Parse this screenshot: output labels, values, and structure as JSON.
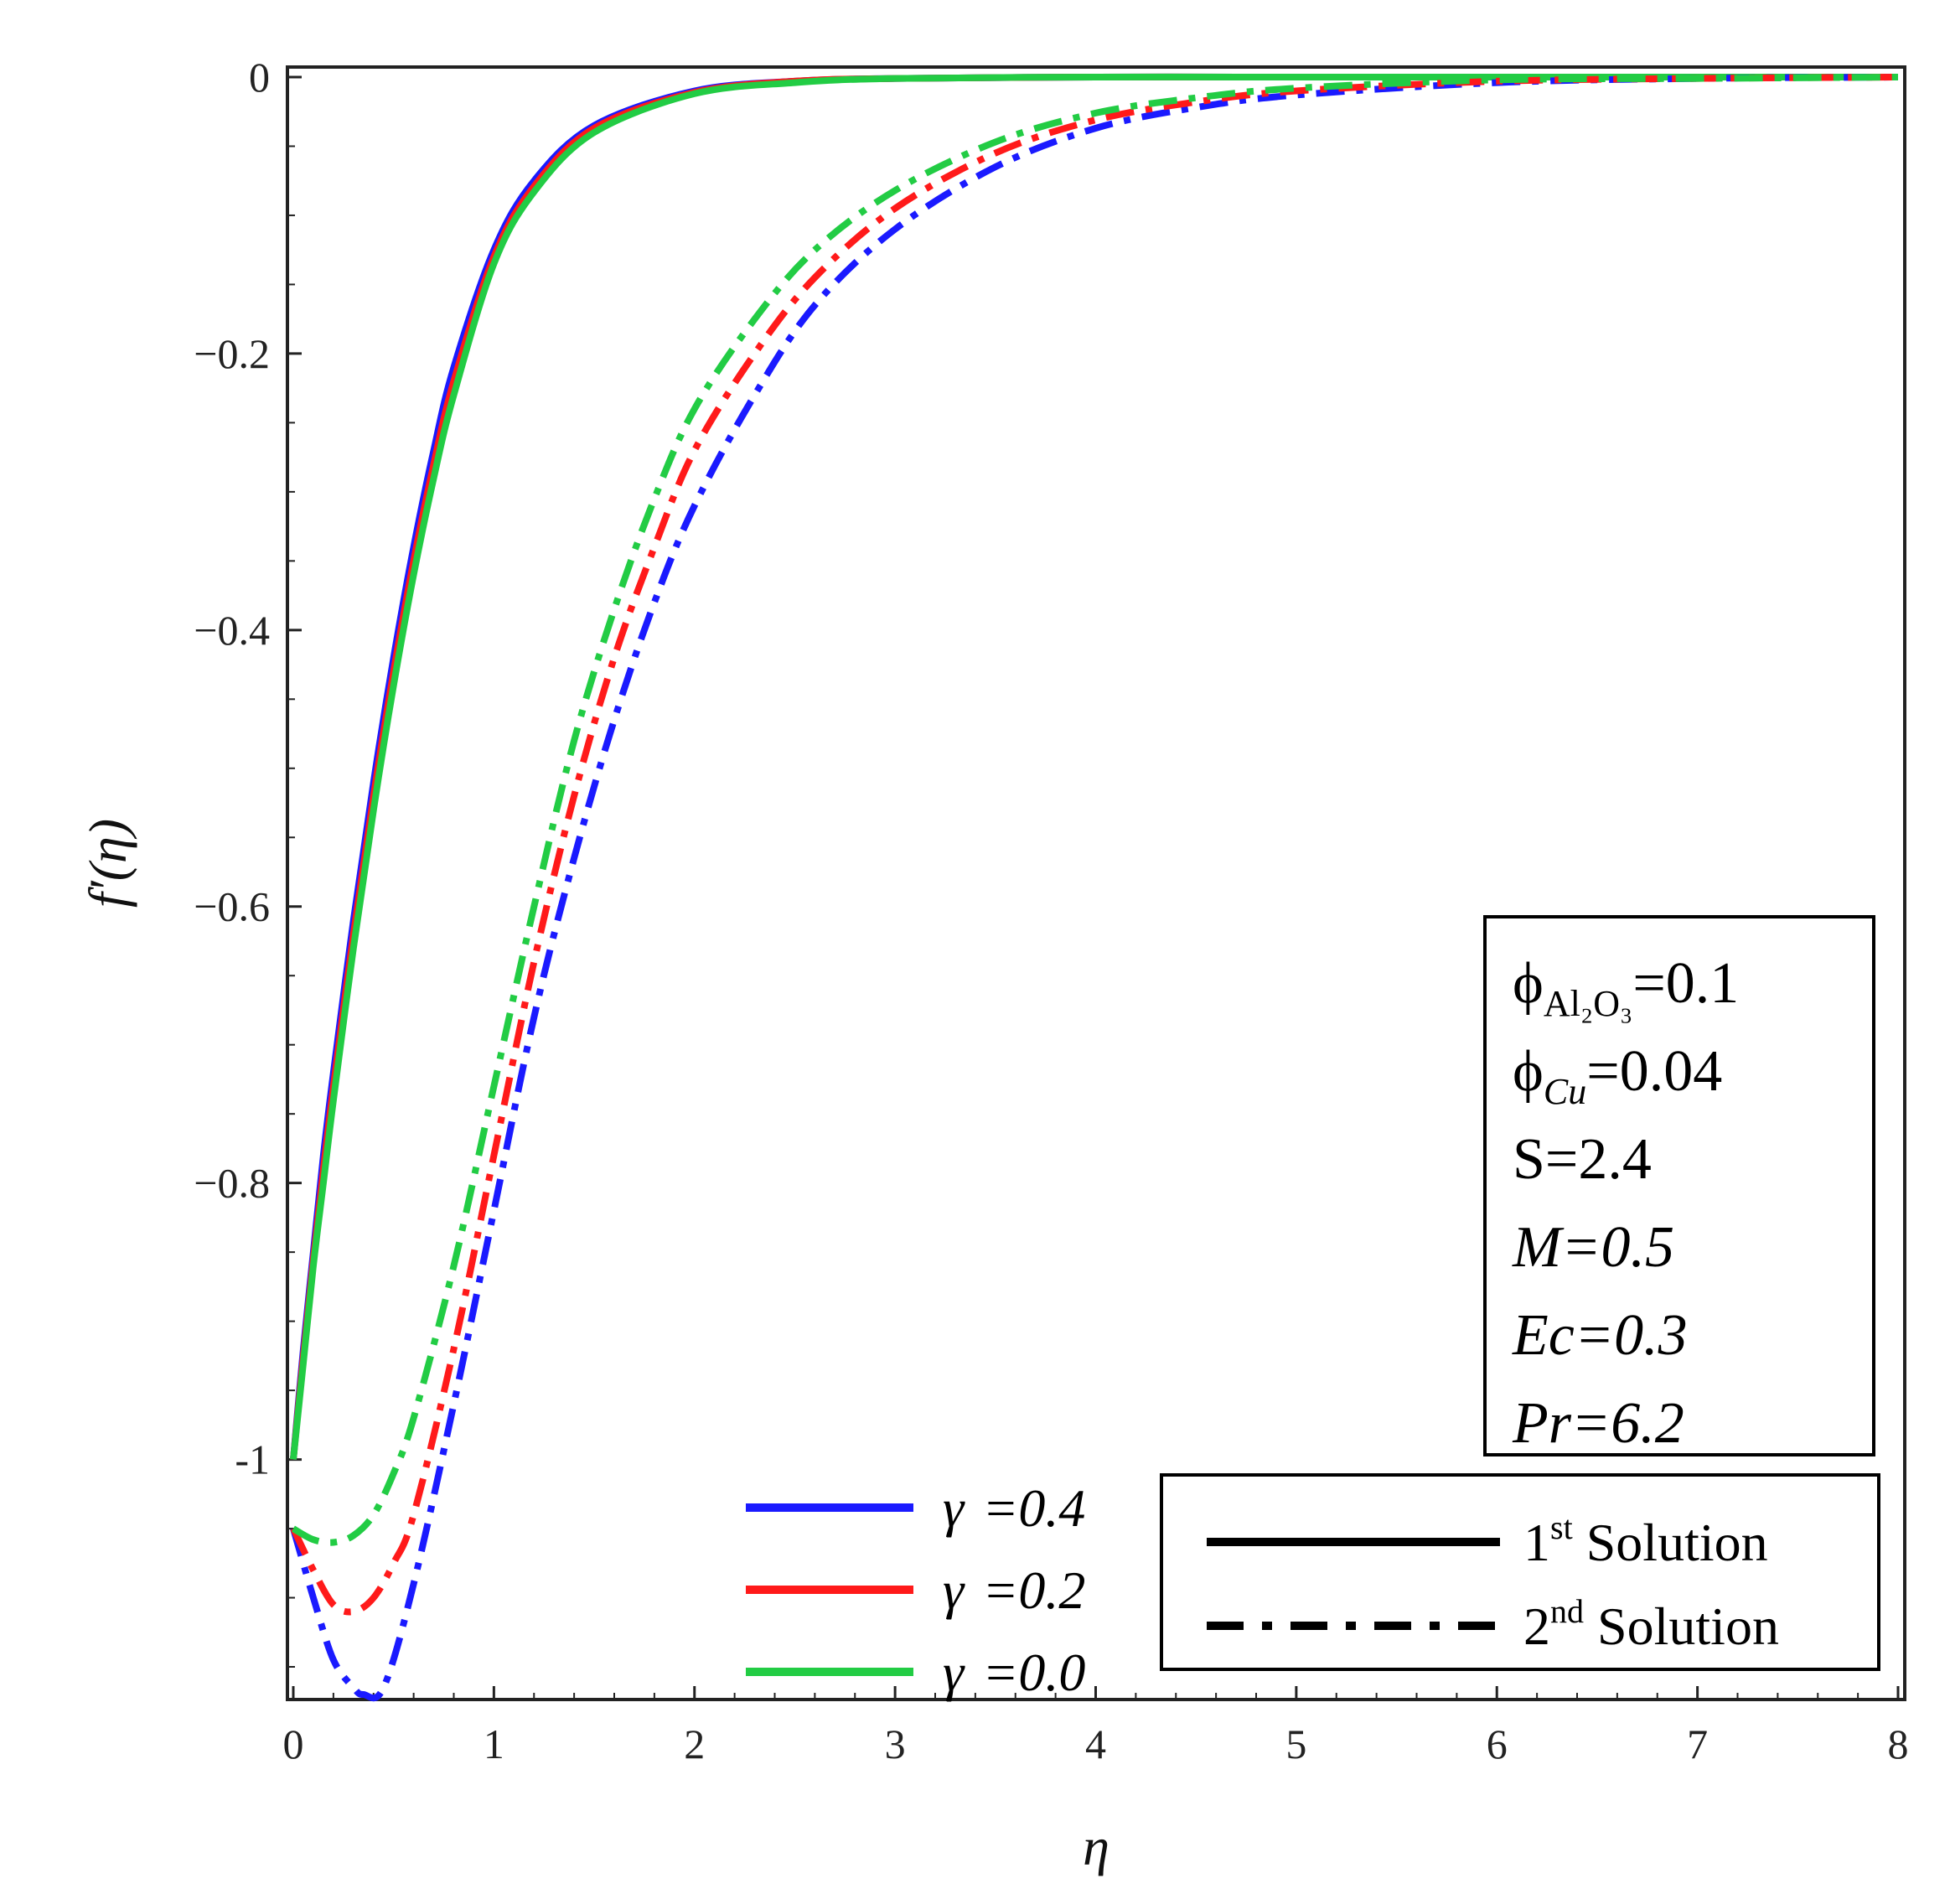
{
  "chart_data": {
    "type": "line",
    "title": "",
    "xlabel": "η",
    "ylabel": "f′(η)",
    "xlim": [
      0,
      8
    ],
    "ylim": [
      -1.17,
      0
    ],
    "x_ticks": [
      "0",
      "1",
      "2",
      "3",
      "4",
      "5",
      "6",
      "7",
      "8"
    ],
    "y_ticks": [
      {
        "value": 0,
        "label": "0"
      },
      {
        "value": -0.2,
        "label": "−0.2"
      },
      {
        "value": -0.4,
        "label": "−0.4"
      },
      {
        "value": -0.6,
        "label": "−0.6"
      },
      {
        "value": -0.8,
        "label": "−0.8"
      },
      {
        "value": -1,
        "label": "-1"
      }
    ],
    "series": [
      {
        "name": "γ =0.4",
        "gamma": "γ",
        "value_label": "=0.4",
        "solution": "1st",
        "color": "#1a1aff",
        "x": [
          0,
          0.05,
          0.1,
          0.15,
          0.2,
          0.3,
          0.4,
          0.5,
          0.6,
          0.7,
          0.8,
          1.0,
          1.2,
          1.5,
          2.0,
          2.5,
          3.0,
          4.0,
          5.0,
          6.0,
          7.0,
          8.0
        ],
        "y": [
          -1.0,
          -0.92,
          -0.85,
          -0.78,
          -0.72,
          -0.61,
          -0.51,
          -0.42,
          -0.34,
          -0.27,
          -0.21,
          -0.125,
          -0.075,
          -0.035,
          -0.01,
          -0.003,
          -0.001,
          0,
          0,
          0,
          0,
          0
        ]
      },
      {
        "name": "γ =0.2",
        "gamma": "γ",
        "value_label": "=0.2",
        "solution": "1st",
        "color": "#ff1a1a",
        "x": [
          0,
          0.05,
          0.1,
          0.15,
          0.2,
          0.3,
          0.4,
          0.5,
          0.6,
          0.7,
          0.8,
          1.0,
          1.2,
          1.5,
          2.0,
          2.5,
          3.0,
          4.0,
          5.0,
          6.0,
          7.0,
          8.0
        ],
        "y": [
          -1.0,
          -0.925,
          -0.855,
          -0.79,
          -0.73,
          -0.62,
          -0.52,
          -0.43,
          -0.35,
          -0.28,
          -0.22,
          -0.13,
          -0.079,
          -0.037,
          -0.011,
          -0.003,
          -0.001,
          0,
          0,
          0,
          0,
          0
        ]
      },
      {
        "name": "γ =0.0",
        "gamma": "γ",
        "value_label": "=0.0",
        "solution": "1st",
        "color": "#22cc44",
        "x": [
          0,
          0.05,
          0.1,
          0.15,
          0.2,
          0.3,
          0.4,
          0.5,
          0.6,
          0.7,
          0.8,
          1.0,
          1.2,
          1.5,
          2.0,
          2.5,
          3.0,
          4.0,
          5.0,
          6.0,
          7.0,
          8.0
        ],
        "y": [
          -1.0,
          -0.93,
          -0.86,
          -0.8,
          -0.74,
          -0.63,
          -0.53,
          -0.44,
          -0.36,
          -0.29,
          -0.23,
          -0.135,
          -0.083,
          -0.04,
          -0.012,
          -0.004,
          -0.001,
          0,
          0,
          0,
          0,
          0
        ]
      },
      {
        "name": "γ =0.4",
        "solution": "2nd",
        "color": "#1a1aff",
        "x": [
          0,
          0.1,
          0.2,
          0.3,
          0.35,
          0.45,
          0.6,
          0.8,
          1.0,
          1.2,
          1.4,
          1.6,
          1.8,
          2.0,
          2.3,
          2.6,
          3.0,
          3.5,
          4.0,
          4.5,
          5.0,
          6.0,
          7.0,
          8.0
        ],
        "y": [
          -1.05,
          -1.1,
          -1.145,
          -1.165,
          -1.17,
          -1.165,
          -1.09,
          -0.96,
          -0.82,
          -0.68,
          -0.565,
          -0.465,
          -0.38,
          -0.31,
          -0.23,
          -0.165,
          -0.11,
          -0.065,
          -0.037,
          -0.022,
          -0.013,
          -0.004,
          -0.001,
          0
        ]
      },
      {
        "name": "γ =0.2",
        "solution": "2nd",
        "color": "#ff1a1a",
        "x": [
          0,
          0.1,
          0.2,
          0.3,
          0.4,
          0.5,
          0.6,
          0.8,
          1.0,
          1.2,
          1.4,
          1.6,
          1.8,
          2.0,
          2.3,
          2.6,
          3.0,
          3.5,
          4.0,
          4.5,
          5.0,
          6.0,
          7.0,
          8.0
        ],
        "y": [
          -1.05,
          -1.08,
          -1.105,
          -1.11,
          -1.1,
          -1.075,
          -1.04,
          -0.92,
          -0.78,
          -0.64,
          -0.52,
          -0.42,
          -0.34,
          -0.27,
          -0.2,
          -0.145,
          -0.095,
          -0.055,
          -0.031,
          -0.018,
          -0.01,
          -0.003,
          -0.001,
          0
        ]
      },
      {
        "name": "γ =0.0",
        "solution": "2nd",
        "color": "#22cc44",
        "x": [
          0,
          0.1,
          0.2,
          0.3,
          0.4,
          0.5,
          0.6,
          0.8,
          1.0,
          1.2,
          1.4,
          1.6,
          1.8,
          2.0,
          2.3,
          2.6,
          3.0,
          3.5,
          4.0,
          4.5,
          5.0,
          6.0,
          7.0,
          8.0
        ],
        "y": [
          -1.05,
          -1.058,
          -1.06,
          -1.055,
          -1.04,
          -1.01,
          -0.97,
          -0.86,
          -0.73,
          -0.6,
          -0.48,
          -0.385,
          -0.305,
          -0.24,
          -0.175,
          -0.125,
          -0.082,
          -0.047,
          -0.026,
          -0.015,
          -0.008,
          -0.002,
          -0.001,
          0
        ]
      }
    ],
    "params_box": [
      {
        "sym": "ϕ",
        "sub": "Al₂O₃",
        "rest": "=0.1"
      },
      {
        "sym": "ϕ",
        "sub": "Cu",
        "rest": "=0.04"
      },
      {
        "sym": "",
        "sub": "",
        "rest": "S=2.4"
      },
      {
        "sym": "",
        "sub": "",
        "rest": "M=0.5"
      },
      {
        "sym": "",
        "sub": "",
        "rest": "Ec=0.3"
      },
      {
        "sym": "",
        "sub": "",
        "rest": "Pr=6.2"
      }
    ],
    "solution_legend": [
      {
        "num": "1",
        "sup": "st",
        "text": " Solution",
        "style": "solid"
      },
      {
        "num": "2",
        "sup": "nd",
        "text": " Solution",
        "style": "dash-dot"
      }
    ],
    "colors": {
      "blue": "#1a1aff",
      "red": "#ff1a1a",
      "green": "#22cc44"
    }
  }
}
